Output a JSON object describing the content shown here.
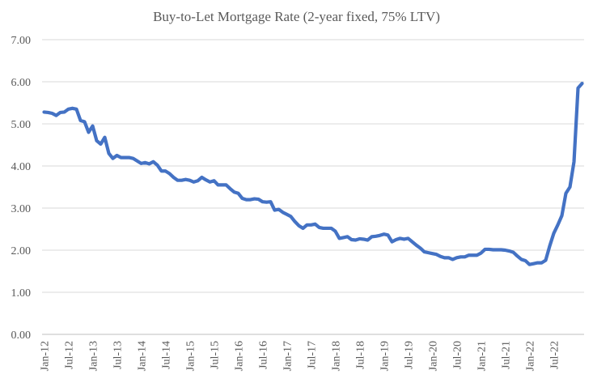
{
  "chart_data": {
    "type": "line",
    "title": "Buy-to-Let Mortgage Rate (2-year fixed, 75% LTV)",
    "xlabel": "",
    "ylabel": "",
    "ylim": [
      0,
      7
    ],
    "yticks": [
      "0.00",
      "1.00",
      "2.00",
      "3.00",
      "4.00",
      "5.00",
      "6.00",
      "7.00"
    ],
    "xtick_labels": [
      "Jan-12",
      "Jul-12",
      "Jan-13",
      "Jul-13",
      "Jan-14",
      "Jul-14",
      "Jan-15",
      "Jul-15",
      "Jan-16",
      "Jul-16",
      "Jan-17",
      "Jul-17",
      "Jan-18",
      "Jul-18",
      "Jan-19",
      "Jul-19",
      "Jan-20",
      "Jul-20",
      "Jan-21",
      "Jul-21",
      "Jan-22",
      "Jul-22"
    ],
    "grid": true,
    "line_color": "#4472c4",
    "series": [
      {
        "name": "Buy-to-Let Mortgage Rate (2-year fixed, 75% LTV)",
        "start": "Jan-12",
        "frequency": "monthly",
        "values": [
          5.28,
          5.27,
          5.25,
          5.2,
          5.27,
          5.28,
          5.35,
          5.37,
          5.35,
          5.08,
          5.05,
          4.8,
          4.95,
          4.6,
          4.52,
          4.68,
          4.3,
          4.18,
          4.25,
          4.2,
          4.2,
          4.2,
          4.18,
          4.12,
          4.06,
          4.08,
          4.05,
          4.1,
          4.02,
          3.88,
          3.88,
          3.82,
          3.73,
          3.66,
          3.66,
          3.68,
          3.66,
          3.62,
          3.65,
          3.73,
          3.67,
          3.62,
          3.65,
          3.55,
          3.55,
          3.55,
          3.46,
          3.38,
          3.35,
          3.23,
          3.2,
          3.2,
          3.22,
          3.21,
          3.15,
          3.14,
          3.15,
          2.95,
          2.97,
          2.9,
          2.85,
          2.8,
          2.68,
          2.58,
          2.52,
          2.6,
          2.6,
          2.62,
          2.54,
          2.52,
          2.52,
          2.52,
          2.45,
          2.28,
          2.3,
          2.32,
          2.25,
          2.24,
          2.27,
          2.26,
          2.24,
          2.32,
          2.33,
          2.35,
          2.38,
          2.36,
          2.2,
          2.25,
          2.28,
          2.26,
          2.28,
          2.2,
          2.12,
          2.05,
          1.96,
          1.94,
          1.92,
          1.9,
          1.85,
          1.82,
          1.82,
          1.78,
          1.82,
          1.84,
          1.84,
          1.88,
          1.88,
          1.88,
          1.93,
          2.02,
          2.02,
          2.01,
          2.01,
          2.01,
          2.0,
          1.98,
          1.95,
          1.86,
          1.78,
          1.75,
          1.66,
          1.68,
          1.7,
          1.7,
          1.76,
          2.1,
          2.4,
          2.6,
          2.82,
          3.35,
          3.5,
          4.1,
          5.85,
          5.96
        ]
      }
    ]
  }
}
